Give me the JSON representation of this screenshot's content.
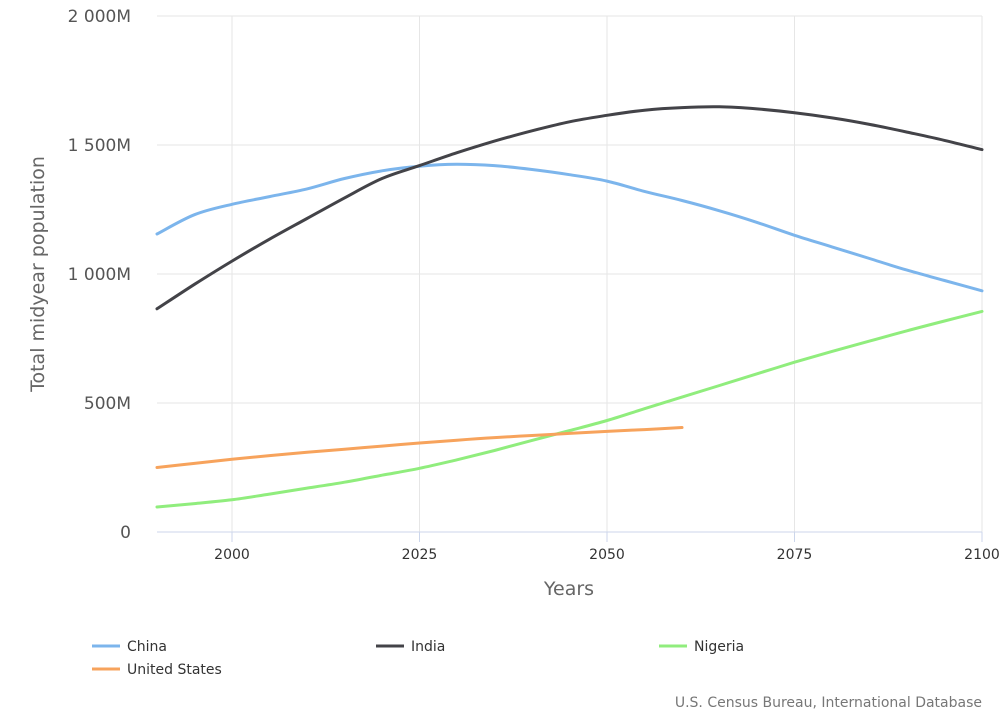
{
  "chart_data": {
    "type": "line",
    "xlabel": "Years",
    "ylabel": "Total midyear population",
    "xlim": [
      1990,
      2100
    ],
    "ylim": [
      0,
      2000
    ],
    "x_ticks": [
      2000,
      2025,
      2050,
      2075,
      2100
    ],
    "y_ticks": [
      0,
      500,
      1000,
      1500,
      2000
    ],
    "y_tick_labels": [
      "0",
      "500M",
      "1 000M",
      "1 500M",
      "2 000M"
    ],
    "y_unit": "millions",
    "grid": true,
    "legend_position": "bottom",
    "series": [
      {
        "name": "China",
        "color": "#7cb5ec",
        "points": [
          [
            1990,
            1155
          ],
          [
            1995,
            1230
          ],
          [
            2000,
            1270
          ],
          [
            2005,
            1300
          ],
          [
            2010,
            1330
          ],
          [
            2015,
            1370
          ],
          [
            2020,
            1400
          ],
          [
            2025,
            1418
          ],
          [
            2030,
            1425
          ],
          [
            2035,
            1420
          ],
          [
            2040,
            1405
          ],
          [
            2045,
            1385
          ],
          [
            2050,
            1360
          ],
          [
            2055,
            1320
          ],
          [
            2060,
            1285
          ],
          [
            2065,
            1245
          ],
          [
            2070,
            1200
          ],
          [
            2075,
            1150
          ],
          [
            2080,
            1105
          ],
          [
            2085,
            1060
          ],
          [
            2090,
            1015
          ],
          [
            2095,
            975
          ],
          [
            2100,
            935
          ]
        ]
      },
      {
        "name": "India",
        "color": "#434348",
        "points": [
          [
            1990,
            865
          ],
          [
            1995,
            960
          ],
          [
            2000,
            1050
          ],
          [
            2005,
            1135
          ],
          [
            2010,
            1215
          ],
          [
            2015,
            1295
          ],
          [
            2020,
            1370
          ],
          [
            2025,
            1420
          ],
          [
            2030,
            1470
          ],
          [
            2035,
            1515
          ],
          [
            2040,
            1555
          ],
          [
            2045,
            1590
          ],
          [
            2050,
            1615
          ],
          [
            2055,
            1635
          ],
          [
            2060,
            1645
          ],
          [
            2065,
            1648
          ],
          [
            2070,
            1640
          ],
          [
            2075,
            1625
          ],
          [
            2080,
            1605
          ],
          [
            2085,
            1580
          ],
          [
            2090,
            1550
          ],
          [
            2095,
            1518
          ],
          [
            2100,
            1482
          ]
        ]
      },
      {
        "name": "Nigeria",
        "color": "#90ed7d",
        "points": [
          [
            1990,
            97
          ],
          [
            1995,
            110
          ],
          [
            2000,
            125
          ],
          [
            2005,
            147
          ],
          [
            2010,
            170
          ],
          [
            2015,
            193
          ],
          [
            2020,
            220
          ],
          [
            2025,
            247
          ],
          [
            2030,
            280
          ],
          [
            2035,
            316
          ],
          [
            2040,
            355
          ],
          [
            2045,
            393
          ],
          [
            2050,
            432
          ],
          [
            2055,
            478
          ],
          [
            2060,
            523
          ],
          [
            2065,
            568
          ],
          [
            2070,
            613
          ],
          [
            2075,
            658
          ],
          [
            2080,
            700
          ],
          [
            2085,
            740
          ],
          [
            2090,
            780
          ],
          [
            2095,
            818
          ],
          [
            2100,
            855
          ]
        ]
      },
      {
        "name": "United States",
        "color": "#f7a35c",
        "points": [
          [
            1990,
            250
          ],
          [
            1995,
            266
          ],
          [
            2000,
            282
          ],
          [
            2005,
            296
          ],
          [
            2010,
            309
          ],
          [
            2015,
            321
          ],
          [
            2020,
            333
          ],
          [
            2025,
            345
          ],
          [
            2030,
            356
          ],
          [
            2035,
            366
          ],
          [
            2040,
            374
          ],
          [
            2045,
            382
          ],
          [
            2050,
            390
          ],
          [
            2055,
            397
          ],
          [
            2060,
            405
          ]
        ]
      }
    ]
  },
  "credit": "U.S. Census Bureau, International Database"
}
